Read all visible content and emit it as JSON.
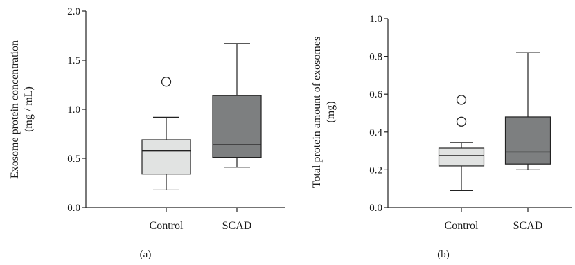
{
  "chart_data": [
    {
      "type": "box",
      "panel_label": "(a)",
      "ylabel_line1": "Exosome protein concentration",
      "ylabel_line2": "(mg / mL)",
      "ylim": [
        0,
        2.0
      ],
      "yticks": [
        "0.0",
        "0.5",
        "1.0",
        "1.5",
        "2.0"
      ],
      "categories": [
        "Control",
        "SCAD"
      ],
      "boxes": [
        {
          "category": "Control",
          "whisker_low": 0.18,
          "q1": 0.34,
          "median": 0.58,
          "q3": 0.69,
          "whisker_high": 0.92,
          "outliers": [
            1.28
          ],
          "fill": "#e1e3e2"
        },
        {
          "category": "SCAD",
          "whisker_low": 0.41,
          "q1": 0.51,
          "median": 0.64,
          "q3": 1.14,
          "whisker_high": 1.67,
          "outliers": [],
          "fill": "#7d7f80"
        }
      ]
    },
    {
      "type": "box",
      "panel_label": "(b)",
      "ylabel_line1": "Total protein amount of exosomes",
      "ylabel_line2": "(mg)",
      "ylim": [
        0,
        1.0
      ],
      "yticks": [
        "0.0",
        "0.2",
        "0.4",
        "0.6",
        "0.8",
        "1.0"
      ],
      "categories": [
        "Control",
        "SCAD"
      ],
      "boxes": [
        {
          "category": "Control",
          "whisker_low": 0.09,
          "q1": 0.22,
          "median": 0.275,
          "q3": 0.315,
          "whisker_high": 0.345,
          "outliers": [
            0.455,
            0.57
          ],
          "fill": "#e1e3e2"
        },
        {
          "category": "SCAD",
          "whisker_low": 0.2,
          "q1": 0.23,
          "median": 0.295,
          "q3": 0.48,
          "whisker_high": 0.82,
          "outliers": [],
          "fill": "#7d7f80"
        }
      ]
    }
  ]
}
